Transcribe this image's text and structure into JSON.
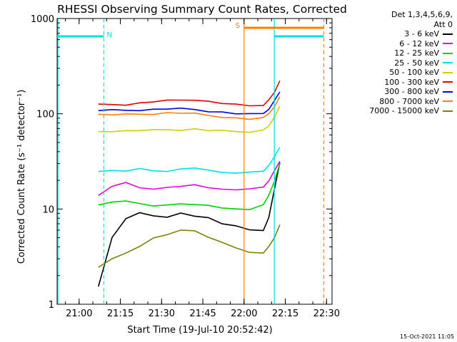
{
  "chart_data": {
    "type": "line",
    "title": "RHESSI Observing Summary Count Rates, Corrected",
    "xlabel": "Start Time (19-Jul-10 20:52:42)",
    "ylabel": "Corrected Count Rate (s⁻¹ detector⁻¹)",
    "yscale": "log",
    "ylim": [
      1,
      1000
    ],
    "xlim": [
      "20:52",
      "22:32"
    ],
    "x_ticks": [
      "21:00",
      "21:15",
      "21:30",
      "21:45",
      "22:00",
      "22:15",
      "22:30"
    ],
    "y_ticks": [
      "1",
      "10",
      "100",
      "1000"
    ],
    "legend_title": [
      "Det 1,3,4,5,6,9,",
      "Att 0"
    ],
    "legend_position": "right",
    "x_times_min": [
      0,
      5,
      10,
      15,
      20,
      25,
      30,
      35,
      40,
      45,
      50,
      55,
      60,
      62,
      64,
      66
    ],
    "series": [
      {
        "name": "3 - 6 keV",
        "color": "#000000",
        "values": [
          1.5,
          5,
          8,
          9,
          8.5,
          8,
          9,
          8.5,
          8,
          7,
          6.5,
          6,
          6,
          8,
          16,
          30
        ]
      },
      {
        "name": "6 - 12 keV",
        "color": "#e000e0",
        "values": [
          14,
          17,
          19,
          17,
          16,
          17,
          17,
          18,
          17,
          16,
          16,
          16,
          17,
          20,
          25,
          32
        ]
      },
      {
        "name": "12 - 25 keV",
        "color": "#00d000",
        "values": [
          11,
          12,
          12,
          11.5,
          11,
          11,
          11.5,
          11,
          11,
          10.5,
          10,
          10,
          11,
          14,
          20,
          30
        ]
      },
      {
        "name": "25 - 50 keV",
        "color": "#00e0e0",
        "values": [
          25,
          25,
          25,
          26,
          25,
          25,
          26,
          27,
          25,
          24,
          24,
          24,
          25,
          28,
          35,
          45
        ]
      },
      {
        "name": "50 - 100 keV",
        "color": "#d0d000",
        "values": [
          65,
          66,
          66,
          67,
          67,
          68,
          68,
          69,
          67,
          66,
          65,
          65,
          67,
          75,
          90,
          120
        ]
      },
      {
        "name": "100 - 300 keV",
        "color": "#e00000",
        "values": [
          125,
          126,
          126,
          130,
          135,
          138,
          140,
          142,
          135,
          130,
          125,
          122,
          125,
          140,
          170,
          220
        ]
      },
      {
        "name": "300 - 800 keV",
        "color": "#0000e0",
        "values": [
          108,
          108,
          108,
          109,
          110,
          112,
          112,
          110,
          106,
          103,
          100,
          98,
          100,
          112,
          135,
          170
        ]
      },
      {
        "name": "800 - 7000 keV",
        "color": "#ff8000",
        "values": [
          98,
          98,
          98,
          99,
          100,
          102,
          102,
          100,
          96,
          93,
          90,
          88,
          90,
          100,
          120,
          150
        ]
      },
      {
        "name": "7000 - 15000 keV",
        "color": "#808000",
        "values": [
          2.5,
          3,
          3.5,
          4,
          5,
          5.5,
          6,
          6,
          5,
          4.5,
          4,
          3.5,
          3.5,
          4,
          5,
          7
        ]
      }
    ],
    "annotations": [
      {
        "label": "N",
        "color": "#00e0e0",
        "x_range": [
          "20:52",
          "21:09"
        ],
        "level": 650
      },
      {
        "label": "",
        "color": "#00e0e0",
        "x_range": [
          "22:11",
          "22:29"
        ],
        "level": 650
      },
      {
        "label": "S",
        "color": "#ff8000",
        "x_range": [
          "22:00",
          "22:29"
        ],
        "level": 800
      }
    ]
  },
  "timestamp": "15-Oct-2021 11:05"
}
